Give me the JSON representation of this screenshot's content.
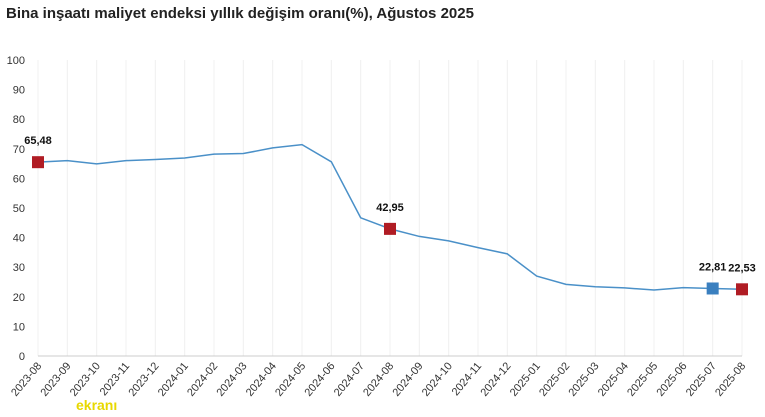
{
  "chart_data": {
    "type": "line",
    "title": "Bina inşaatı maliyet endeksi yıllık değişim oranı(%), Ağustos 2025",
    "categories": [
      "2023-08",
      "2023-09",
      "2023-10",
      "2023-11",
      "2023-12",
      "2024-01",
      "2024-02",
      "2024-03",
      "2024-04",
      "2024-05",
      "2024-06",
      "2024-07",
      "2024-08",
      "2024-09",
      "2024-10",
      "2024-11",
      "2024-12",
      "2025-01",
      "2025-02",
      "2025-03",
      "2025-04",
      "2025-05",
      "2025-06",
      "2025-07",
      "2025-08"
    ],
    "series": [
      {
        "color": "#4a90c8",
        "values": [
          65.48,
          66.0,
          64.9,
          66.0,
          66.4,
          66.9,
          68.2,
          68.4,
          70.3,
          71.4,
          65.6,
          46.7,
          42.95,
          40.4,
          38.9,
          36.6,
          34.5,
          27.0,
          24.2,
          23.4,
          23.0,
          22.3,
          23.1,
          22.81,
          22.53
        ],
        "value_labels": [
          "65,48",
          null,
          null,
          null,
          null,
          null,
          null,
          null,
          null,
          null,
          null,
          null,
          "42,95",
          null,
          null,
          null,
          null,
          null,
          null,
          null,
          null,
          null,
          null,
          "22,81",
          "22,53"
        ],
        "marker_colors": [
          "#b01c24",
          null,
          null,
          null,
          null,
          null,
          null,
          null,
          null,
          null,
          null,
          null,
          "#b01c24",
          null,
          null,
          null,
          null,
          null,
          null,
          null,
          null,
          null,
          null,
          "#3a7fbf",
          "#b01c24"
        ]
      }
    ],
    "ylim": [
      0,
      100
    ],
    "yticks": [
      0,
      10,
      20,
      30,
      40,
      50,
      60,
      70,
      80,
      90,
      100
    ],
    "grid": "x",
    "watermark": "ekranı"
  }
}
